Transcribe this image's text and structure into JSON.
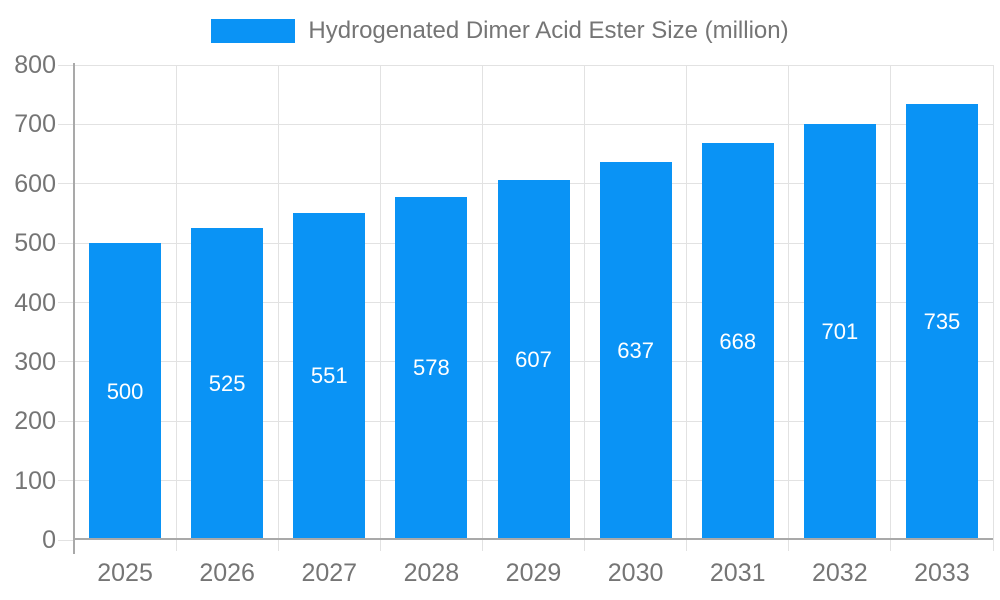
{
  "chart_data": {
    "type": "bar",
    "title": "Hydrogenated Dimer Acid Ester Size (million)",
    "categories": [
      "2025",
      "2026",
      "2027",
      "2028",
      "2029",
      "2030",
      "2031",
      "2032",
      "2033"
    ],
    "values": [
      500,
      525,
      551,
      578,
      607,
      637,
      668,
      701,
      735
    ],
    "bar_labels": [
      "500",
      "525",
      "551",
      "578",
      "607",
      "637",
      "668",
      "701",
      "735"
    ],
    "xlabel": "",
    "ylabel": "",
    "ylim": [
      0,
      800
    ],
    "y_ticks": [
      0,
      100,
      200,
      300,
      400,
      500,
      600,
      700,
      800
    ],
    "grid": true,
    "legend_position": "top-center",
    "colors": {
      "bar": "#0a93f5",
      "bar_value_text": "#ffffff",
      "grid_line": "#e2e2e2",
      "axis_line": "#a9a9a9",
      "tick_text": "#757575",
      "legend_text": "#757575",
      "background": "#ffffff"
    }
  }
}
